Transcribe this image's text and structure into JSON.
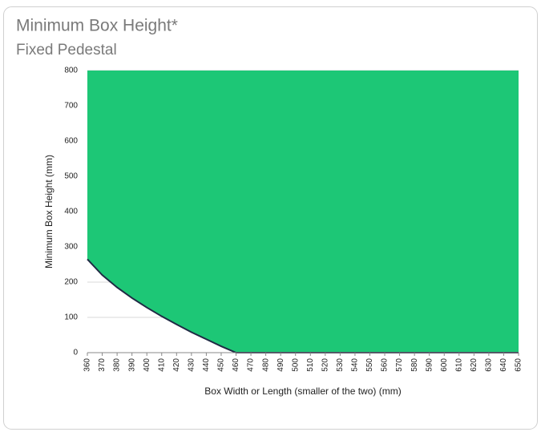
{
  "chart_data": {
    "type": "area",
    "title": "Minimum Box Height*",
    "subtitle": "Fixed Pedestal",
    "x_label": "Box Width or Length (smaller of the two) (mm)",
    "y_label": "Minimum Box Height (mm)",
    "x": [
      360,
      370,
      380,
      390,
      400,
      410,
      420,
      430,
      440,
      450,
      460,
      470,
      480,
      490,
      500,
      510,
      520,
      530,
      540,
      550,
      560,
      570,
      580,
      590,
      600,
      610,
      620,
      630,
      640,
      650
    ],
    "series": [
      {
        "color": "#1dc776",
        "line_color": "#1f2a44",
        "values": [
          265,
          220,
          185,
          155,
          128,
          103,
          80,
          58,
          38,
          18,
          0,
          0,
          0,
          0,
          0,
          0,
          0,
          0,
          0,
          0,
          0,
          0,
          0,
          0,
          0,
          0,
          0,
          0,
          0,
          0
        ]
      }
    ],
    "fill": "above",
    "xlim": [
      360,
      650
    ],
    "xticks": [
      360,
      370,
      380,
      390,
      400,
      410,
      420,
      430,
      440,
      450,
      460,
      470,
      480,
      490,
      500,
      510,
      520,
      530,
      540,
      550,
      560,
      570,
      580,
      590,
      600,
      610,
      620,
      630,
      640,
      650
    ],
    "ylim": [
      0,
      800
    ],
    "yticks": [
      0,
      100,
      200,
      300,
      400,
      500,
      600,
      700,
      800
    ],
    "grid": true
  }
}
